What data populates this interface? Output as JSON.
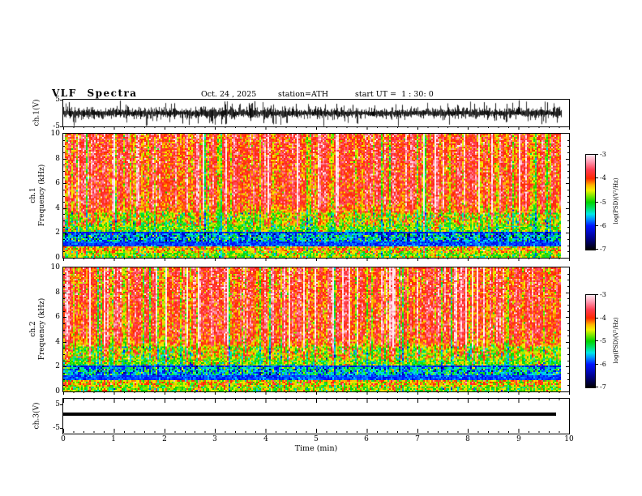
{
  "header": {
    "title": "VLF Spectra",
    "date": "Oct. 24 , 2025",
    "station": "station=ATH",
    "start_ut": "start UT =  1 : 30: 0"
  },
  "x_axis": {
    "label": "Time (min)",
    "range_min": [
      0,
      10
    ],
    "major_ticks": [
      0,
      1,
      2,
      3,
      4,
      5,
      6,
      7,
      8,
      9,
      10
    ],
    "minor_tick_step_min": 0.2
  },
  "colorbar": {
    "label": "log(PSD)(V²/Hz)",
    "ticks": [
      -3,
      -4,
      -5,
      -6,
      -7
    ],
    "range_log_psd": [
      -7,
      -3
    ],
    "stops": [
      [
        0,
        "#000000"
      ],
      [
        0.12,
        "#00008b"
      ],
      [
        0.25,
        "#0014ff"
      ],
      [
        0.32,
        "#0090ff"
      ],
      [
        0.375,
        "#00e8e8"
      ],
      [
        0.44,
        "#00e060"
      ],
      [
        0.5,
        "#00d400"
      ],
      [
        0.56,
        "#70e600"
      ],
      [
        0.625,
        "#f2f200"
      ],
      [
        0.68,
        "#ffb400"
      ],
      [
        0.75,
        "#ff2800"
      ],
      [
        0.84,
        "#ff3c50"
      ],
      [
        0.93,
        "#ff9eb4"
      ],
      [
        1,
        "#ffe8ee"
      ]
    ]
  },
  "chart_data": [
    {
      "type": "line",
      "id": "ch1-waveform",
      "ylabel": "ch.1(V)",
      "ylim": [
        -5,
        5
      ],
      "yticks": [
        5,
        -5
      ],
      "x_range_min": [
        0,
        9.85
      ],
      "signal_summary": {
        "kind": "dense broadband noise trace",
        "mean_v": 0,
        "typical_amplitude_v": 2,
        "peak_amplitude_v": 5,
        "color": "#000000"
      }
    },
    {
      "type": "heatmap",
      "id": "ch1-spectrogram",
      "ylabel_channel": "ch.1",
      "ylabel_axis": "Frequency (kHz)",
      "ylim_khz": [
        0,
        10
      ],
      "yticks_khz": [
        10,
        8,
        6,
        4,
        2,
        0
      ],
      "x_range_min": [
        0,
        9.84
      ],
      "psd_range_log": [
        -7,
        -3
      ],
      "bands": [
        {
          "f_khz": [
            3.6,
            10
          ],
          "psd_log": -3.85,
          "sigma": 0.3,
          "col_sens": 1.2,
          "blend_khz": 0.9,
          "appearance": "red with yellow vertical streaks"
        },
        {
          "f_khz": [
            2.6,
            3.6
          ],
          "psd_log": -4.55,
          "sigma": 0.42,
          "col_sens": 1.1,
          "blend_khz": 0.25,
          "appearance": "yellow-green transition"
        },
        {
          "f_khz": [
            2.05,
            2.6
          ],
          "psd_log": -4.85,
          "sigma": 0.35,
          "col_sens": 0.7,
          "blend_khz": 0.1,
          "appearance": "green-yellow"
        },
        {
          "f_khz": [
            1.25,
            2.05
          ],
          "psd_log": -5.65,
          "sigma": 0.45,
          "col_sens": 0.5,
          "blend_khz": 0.1,
          "appearance": "cyan-blue mottled band"
        },
        {
          "f_khz": [
            0.95,
            1.25
          ],
          "psd_log": -5.15,
          "sigma": 0.25,
          "col_sens": 0.4,
          "blend_khz": 0.05,
          "appearance": "dark olive band with dark horizontal lines"
        },
        {
          "f_khz": [
            0.45,
            0.95
          ],
          "psd_log": -4.35,
          "sigma": 0.4,
          "col_sens": 0.5,
          "blend_khz": 0.05,
          "appearance": "yellow-orange-red mottled"
        },
        {
          "f_khz": [
            0,
            0.45
          ],
          "psd_log": -4.75,
          "sigma": 0.35,
          "col_sens": 0.6,
          "blend_khz": 0.05,
          "appearance": "green-yellow with red speckles"
        }
      ],
      "h_lines_khz": [
        0.98,
        1.1,
        1.22,
        2.02
      ],
      "render": {
        "seed": 7,
        "col_sigma": 0.28,
        "p_bright_col": 0.06,
        "bright_boost": 0.85,
        "p_dark_col": 0.05,
        "dark_drop": -0.8
      }
    },
    {
      "type": "heatmap",
      "id": "ch2-spectrogram",
      "ylabel_channel": "ch.2",
      "ylabel_axis": "Frequency (kHz)",
      "ylim_khz": [
        0,
        10
      ],
      "yticks_khz": [
        10,
        8,
        6,
        4,
        2,
        0
      ],
      "x_range_min": [
        0,
        9.84
      ],
      "psd_range_log": [
        -7,
        -3
      ],
      "bands": [
        {
          "f_khz": [
            3.6,
            10
          ],
          "psd_log": -3.85,
          "sigma": 0.3,
          "col_sens": 1.2,
          "blend_khz": 0.9,
          "appearance": "red with yellow vertical streaks"
        },
        {
          "f_khz": [
            2.6,
            3.6
          ],
          "psd_log": -4.55,
          "sigma": 0.42,
          "col_sens": 1.1,
          "blend_khz": 0.25,
          "appearance": "yellow-green transition"
        },
        {
          "f_khz": [
            2.05,
            2.6
          ],
          "psd_log": -4.85,
          "sigma": 0.35,
          "col_sens": 0.7,
          "blend_khz": 0.1,
          "appearance": "green-yellow"
        },
        {
          "f_khz": [
            1.25,
            2.05
          ],
          "psd_log": -5.55,
          "sigma": 0.45,
          "col_sens": 0.5,
          "blend_khz": 0.1,
          "appearance": "cyan-green mottled band"
        },
        {
          "f_khz": [
            0.95,
            1.25
          ],
          "psd_log": -5.15,
          "sigma": 0.25,
          "col_sens": 0.4,
          "blend_khz": 0.05,
          "appearance": "dark olive band with dark horizontal lines"
        },
        {
          "f_khz": [
            0.45,
            0.95
          ],
          "psd_log": -4.35,
          "sigma": 0.4,
          "col_sens": 0.5,
          "blend_khz": 0.05,
          "appearance": "yellow-orange-red mottled"
        },
        {
          "f_khz": [
            0,
            0.45
          ],
          "psd_log": -4.75,
          "sigma": 0.35,
          "col_sens": 0.6,
          "blend_khz": 0.05,
          "appearance": "green-yellow with red speckles"
        }
      ],
      "h_lines_khz": [
        0.98,
        1.1,
        1.22,
        2.02
      ],
      "render": {
        "seed": 99,
        "col_sigma": 0.28,
        "p_bright_col": 0.06,
        "bright_boost": 0.85,
        "p_dark_col": 0.05,
        "dark_drop": -0.8
      }
    },
    {
      "type": "line",
      "id": "ch3-waveform",
      "ylabel": "ch.3(V)",
      "ylim": [
        -5,
        5
      ],
      "yticks": [
        5,
        -5
      ],
      "x_range_min": [
        0,
        9.75
      ],
      "signal_summary": {
        "kind": "constant flat trace",
        "value_v": 0,
        "color": "#000000"
      }
    }
  ]
}
